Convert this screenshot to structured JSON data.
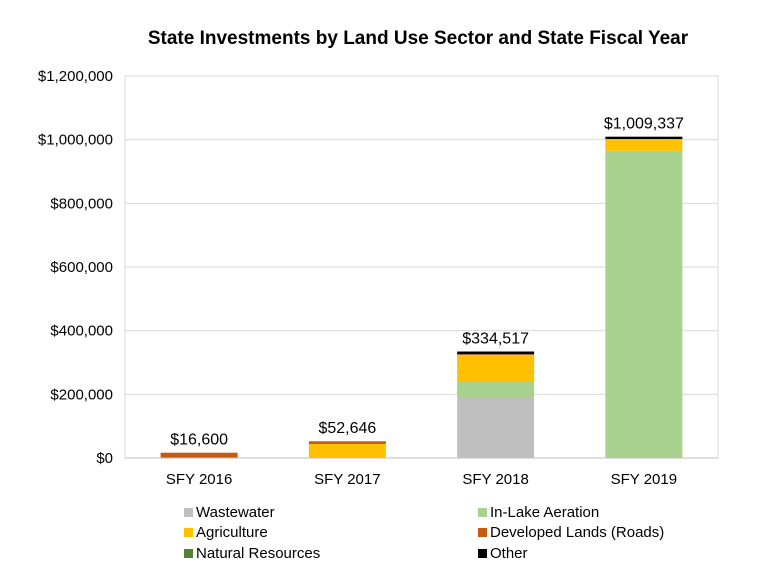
{
  "chart_data": {
    "type": "bar",
    "stacked": true,
    "title": "State Investments by Land Use Sector and State Fiscal Year",
    "xlabel": "",
    "ylabel": "",
    "ylim": [
      0,
      1200000
    ],
    "yticks": [
      "$0",
      "$200,000",
      "$400,000",
      "$600,000",
      "$800,000",
      "$1,000,000",
      "$1,200,000"
    ],
    "grid": true,
    "legend_position": "bottom",
    "categories": [
      "SFY 2016",
      "SFY 2017",
      "SFY 2018",
      "SFY 2019"
    ],
    "totals": [
      "$16,600",
      "$52,646",
      "$334,517",
      "$1,009,337"
    ],
    "series": [
      {
        "name": "Wastewater",
        "color": "#bfbfbf",
        "values": [
          0,
          0,
          190000,
          0
        ]
      },
      {
        "name": "In-Lake Aeration",
        "color": "#a9d18e",
        "values": [
          0,
          0,
          52000,
          965000
        ]
      },
      {
        "name": "Agriculture",
        "color": "#ffc000",
        "values": [
          0,
          44000,
          82000,
          37000
        ]
      },
      {
        "name": "Developed Lands (Roads)",
        "color": "#c55a11",
        "values": [
          16600,
          8646,
          2000,
          0
        ]
      },
      {
        "name": "Natural Resources",
        "color": "#548235",
        "values": [
          0,
          0,
          0,
          0
        ]
      },
      {
        "name": "Other",
        "color": "#000000",
        "values": [
          0,
          0,
          8517,
          7337
        ]
      }
    ]
  }
}
